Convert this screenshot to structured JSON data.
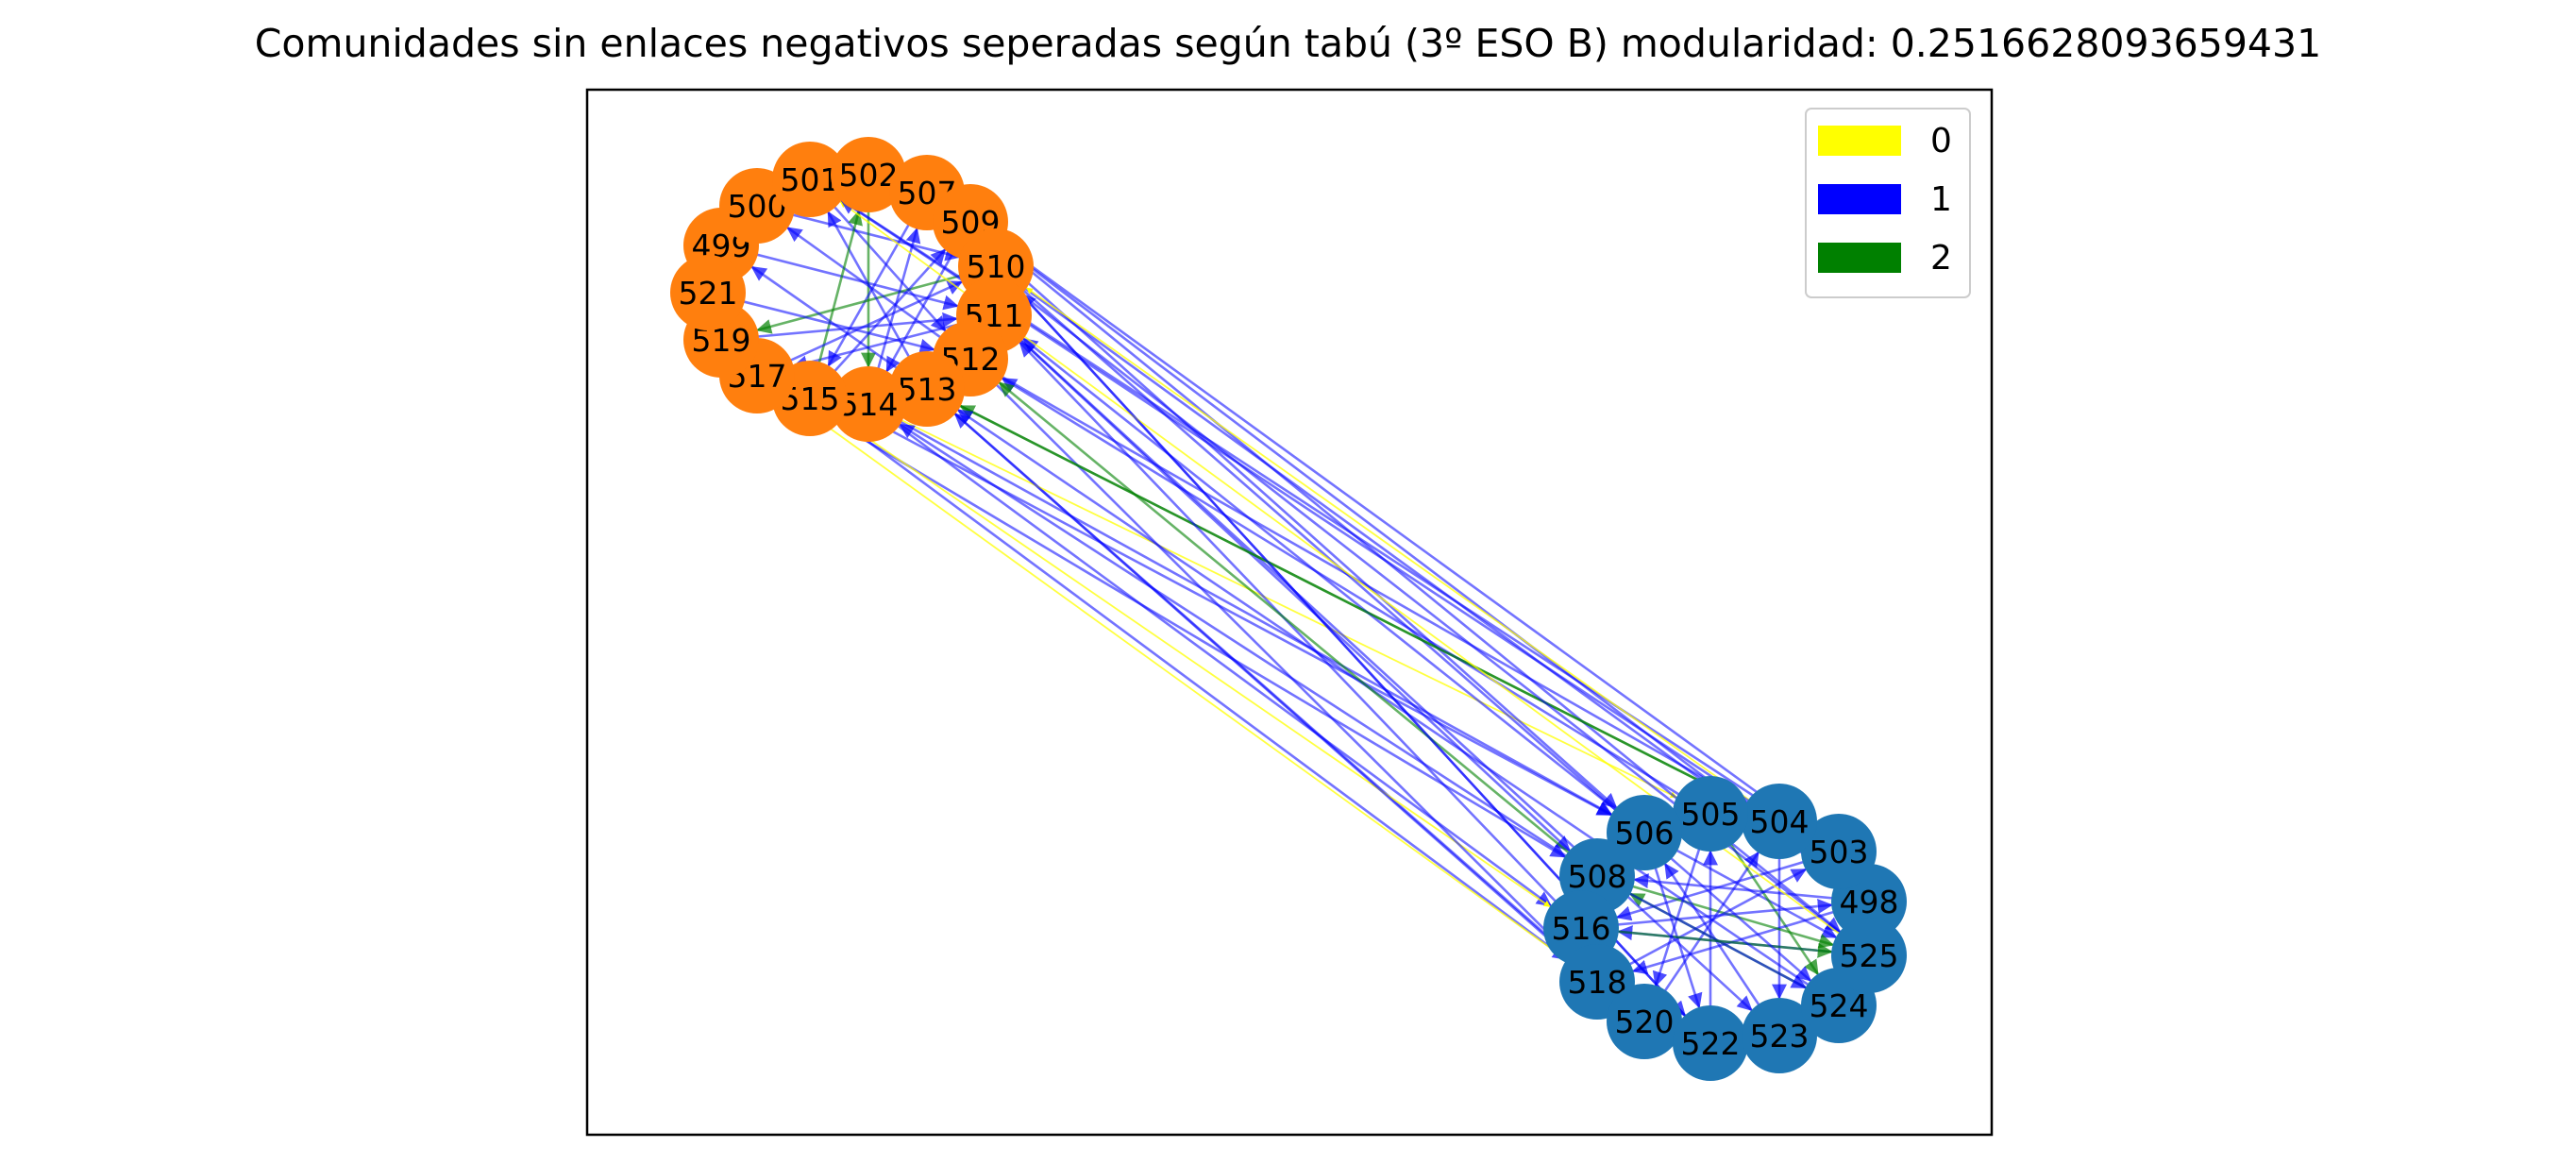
{
  "title": "Comunidades sin enlaces negativos seperadas según tabú (3º ESO B) modularidad: 0.2516628093659431",
  "colors": {
    "community_a": "#ff7f0e",
    "community_b": "#1f77b4",
    "edge_0": "#ffff00",
    "edge_1": "#0000ff",
    "edge_2": "#008000"
  },
  "legend": {
    "placement": "top-right",
    "entries": [
      {
        "label": "0",
        "color": "#ffff00"
      },
      {
        "label": "1",
        "color": "#0000ff"
      },
      {
        "label": "2",
        "color": "#008000"
      }
    ]
  },
  "communities": [
    {
      "color": "#ff7f0e",
      "nodes": [
        "499",
        "500",
        "501",
        "502",
        "507",
        "509",
        "510",
        "511",
        "512",
        "513",
        "514",
        "515",
        "517",
        "519",
        "521"
      ]
    },
    {
      "color": "#1f77b4",
      "nodes": [
        "498",
        "503",
        "504",
        "505",
        "506",
        "508",
        "516",
        "518",
        "520",
        "522",
        "523",
        "524",
        "525"
      ]
    }
  ],
  "edges": [
    {
      "from": "500",
      "to": "510",
      "type": 1
    },
    {
      "from": "499",
      "to": "511",
      "type": 1
    },
    {
      "from": "501",
      "to": "512",
      "type": 1
    },
    {
      "from": "502",
      "to": "514",
      "type": 2
    },
    {
      "from": "507",
      "to": "515",
      "type": 1
    },
    {
      "from": "509",
      "to": "514",
      "type": 1
    },
    {
      "from": "510",
      "to": "519",
      "type": 2
    },
    {
      "from": "511",
      "to": "517",
      "type": 1
    },
    {
      "from": "512",
      "to": "500",
      "type": 1
    },
    {
      "from": "513",
      "to": "501",
      "type": 1
    },
    {
      "from": "514",
      "to": "507",
      "type": 1
    },
    {
      "from": "515",
      "to": "502",
      "type": 2
    },
    {
      "from": "517",
      "to": "510",
      "type": 1
    },
    {
      "from": "519",
      "to": "511",
      "type": 1
    },
    {
      "from": "521",
      "to": "512",
      "type": 1
    },
    {
      "from": "514",
      "to": "511",
      "type": 2
    },
    {
      "from": "515",
      "to": "509",
      "type": 1
    },
    {
      "from": "513",
      "to": "499",
      "type": 1
    },
    {
      "from": "506",
      "to": "525",
      "type": 1
    },
    {
      "from": "505",
      "to": "524",
      "type": 2
    },
    {
      "from": "504",
      "to": "523",
      "type": 1
    },
    {
      "from": "503",
      "to": "516",
      "type": 1
    },
    {
      "from": "498",
      "to": "518",
      "type": 1
    },
    {
      "from": "508",
      "to": "525",
      "type": 2
    },
    {
      "from": "516",
      "to": "498",
      "type": 1
    },
    {
      "from": "518",
      "to": "503",
      "type": 1
    },
    {
      "from": "520",
      "to": "504",
      "type": 1
    },
    {
      "from": "522",
      "to": "505",
      "type": 1
    },
    {
      "from": "523",
      "to": "506",
      "type": 1
    },
    {
      "from": "524",
      "to": "508",
      "type": 2
    },
    {
      "from": "525",
      "to": "516",
      "type": 1
    },
    {
      "from": "506",
      "to": "522",
      "type": 1
    },
    {
      "from": "508",
      "to": "524",
      "type": 1
    },
    {
      "from": "516",
      "to": "525",
      "type": 2
    },
    {
      "from": "505",
      "to": "520",
      "type": 1
    },
    {
      "from": "498",
      "to": "508",
      "type": 1
    },
    {
      "from": "514",
      "to": "516",
      "type": 1
    },
    {
      "from": "515",
      "to": "518",
      "type": 1
    },
    {
      "from": "517",
      "to": "508",
      "type": 1
    },
    {
      "from": "514",
      "to": "506",
      "type": 1
    },
    {
      "from": "513",
      "to": "520",
      "type": 1
    },
    {
      "from": "515",
      "to": "516",
      "type": 0
    },
    {
      "from": "517",
      "to": "518",
      "type": 0
    },
    {
      "from": "514",
      "to": "505",
      "type": 0
    },
    {
      "from": "512",
      "to": "504",
      "type": 1
    },
    {
      "from": "511",
      "to": "523",
      "type": 1
    },
    {
      "from": "510",
      "to": "524",
      "type": 1
    },
    {
      "from": "509",
      "to": "525",
      "type": 1
    },
    {
      "from": "507",
      "to": "506",
      "type": 1
    },
    {
      "from": "511",
      "to": "508",
      "type": 1
    },
    {
      "from": "510",
      "to": "522",
      "type": 1
    },
    {
      "from": "512",
      "to": "518",
      "type": 1
    },
    {
      "from": "513",
      "to": "504",
      "type": 2
    },
    {
      "from": "502",
      "to": "498",
      "type": 1
    },
    {
      "from": "501",
      "to": "503",
      "type": 1
    },
    {
      "from": "519",
      "to": "506",
      "type": 1
    },
    {
      "from": "506",
      "to": "511",
      "type": 1
    },
    {
      "from": "505",
      "to": "512",
      "type": 1
    },
    {
      "from": "503",
      "to": "513",
      "type": 2
    },
    {
      "from": "498",
      "to": "509",
      "type": 1
    },
    {
      "from": "504",
      "to": "510",
      "type": 0
    },
    {
      "from": "525",
      "to": "502",
      "type": 1
    },
    {
      "from": "524",
      "to": "513",
      "type": 1
    },
    {
      "from": "516",
      "to": "511",
      "type": 1
    },
    {
      "from": "508",
      "to": "512",
      "type": 2
    },
    {
      "from": "508",
      "to": "514",
      "type": 1
    },
    {
      "from": "525",
      "to": "501",
      "type": 0
    },
    {
      "from": "522",
      "to": "510",
      "type": 1
    },
    {
      "from": "518",
      "to": "513",
      "type": 1
    },
    {
      "from": "504",
      "to": "501",
      "type": 1
    },
    {
      "from": "503",
      "to": "509",
      "type": 1
    }
  ]
}
